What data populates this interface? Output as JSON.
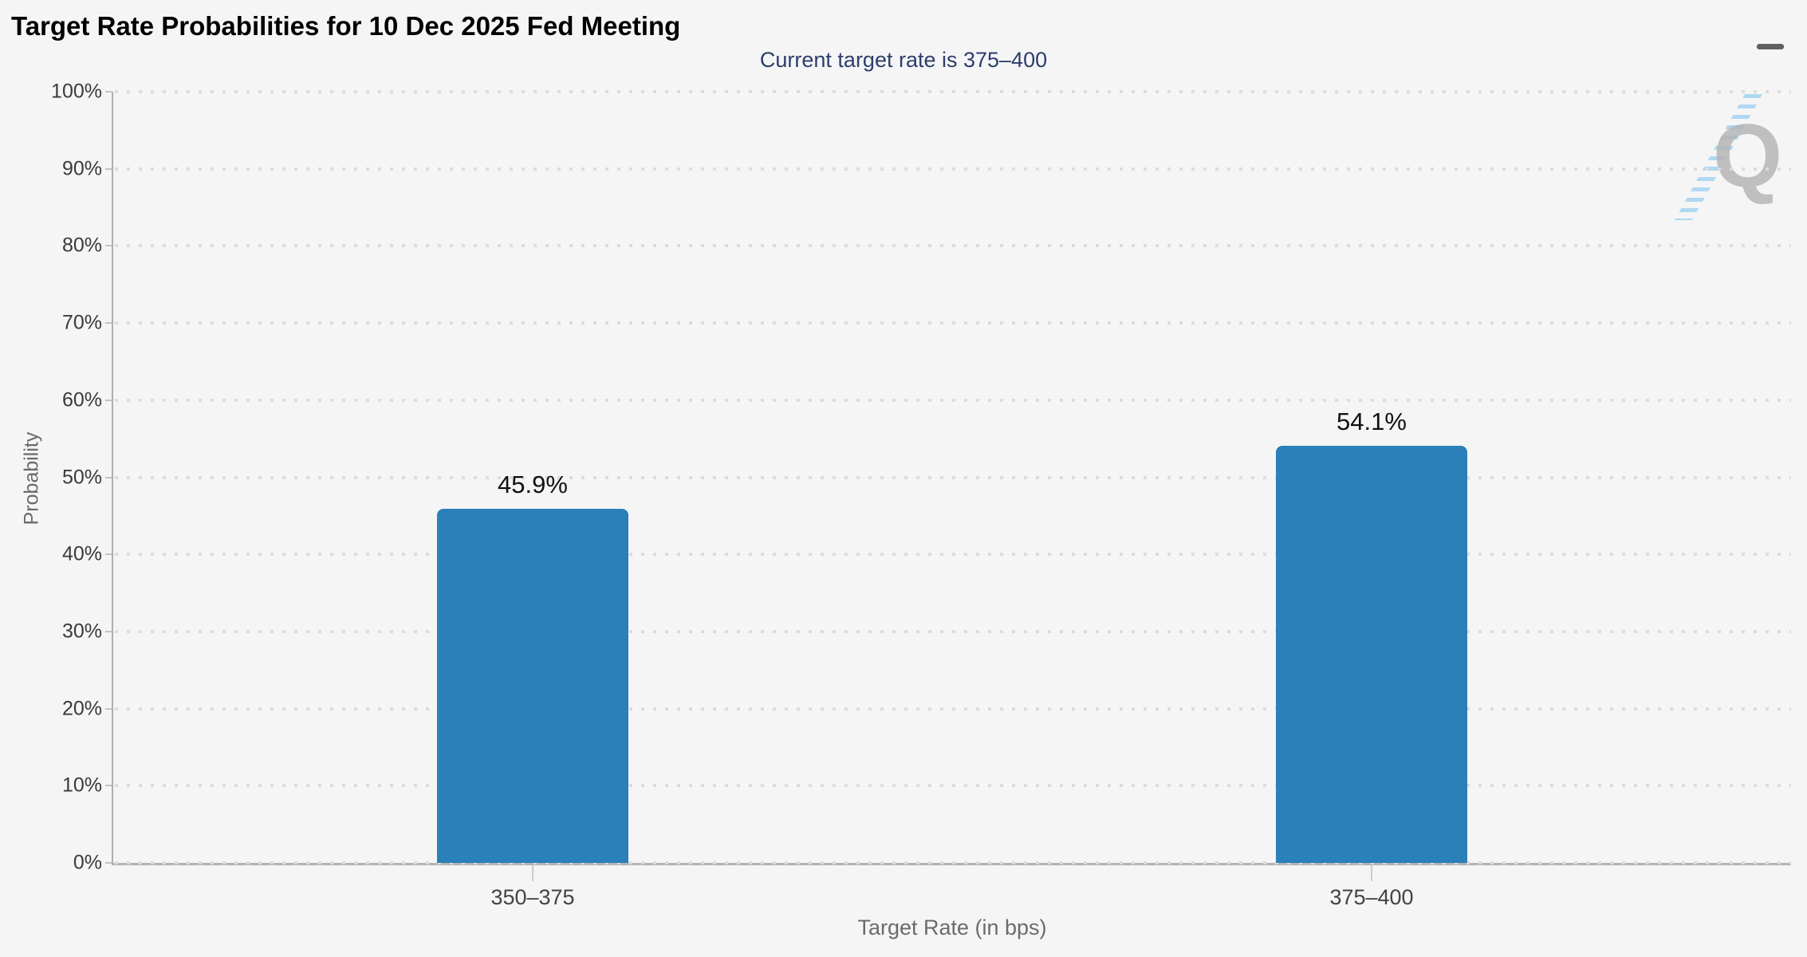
{
  "header": {
    "title": "Target Rate Probabilities for 10 Dec 2025 Fed Meeting",
    "menu_icon": "hamburger-menu-icon"
  },
  "watermark": {
    "letter": "Q"
  },
  "chart_data": {
    "type": "bar",
    "title": "Target Rate Probabilities for 10 Dec 2025 Fed Meeting",
    "subtitle": "Current target rate is 375–400",
    "categories": [
      "350–375",
      "375–400"
    ],
    "values": [
      45.9,
      54.1
    ],
    "value_labels": [
      "45.9%",
      "54.1%"
    ],
    "xlabel": "Target Rate (in bps)",
    "ylabel": "Probability",
    "ylim": [
      0,
      100
    ],
    "yticks": [
      "0%",
      "10%",
      "20%",
      "30%",
      "40%",
      "50%",
      "60%",
      "70%",
      "80%",
      "90%",
      "100%"
    ],
    "ytick_step": 10,
    "grid": "dotted-horizontal",
    "legend": "none",
    "colors": {
      "bar": "#2b80b9",
      "background": "#f5f5f6",
      "subtitle_text": "#2c3e6c",
      "axis_line": "#b3b3b3",
      "grid_dots": "#dcdcdc",
      "title_text": "#000000",
      "tick_label": "#3a3a3a",
      "axis_title": "#6b6b6b"
    }
  }
}
